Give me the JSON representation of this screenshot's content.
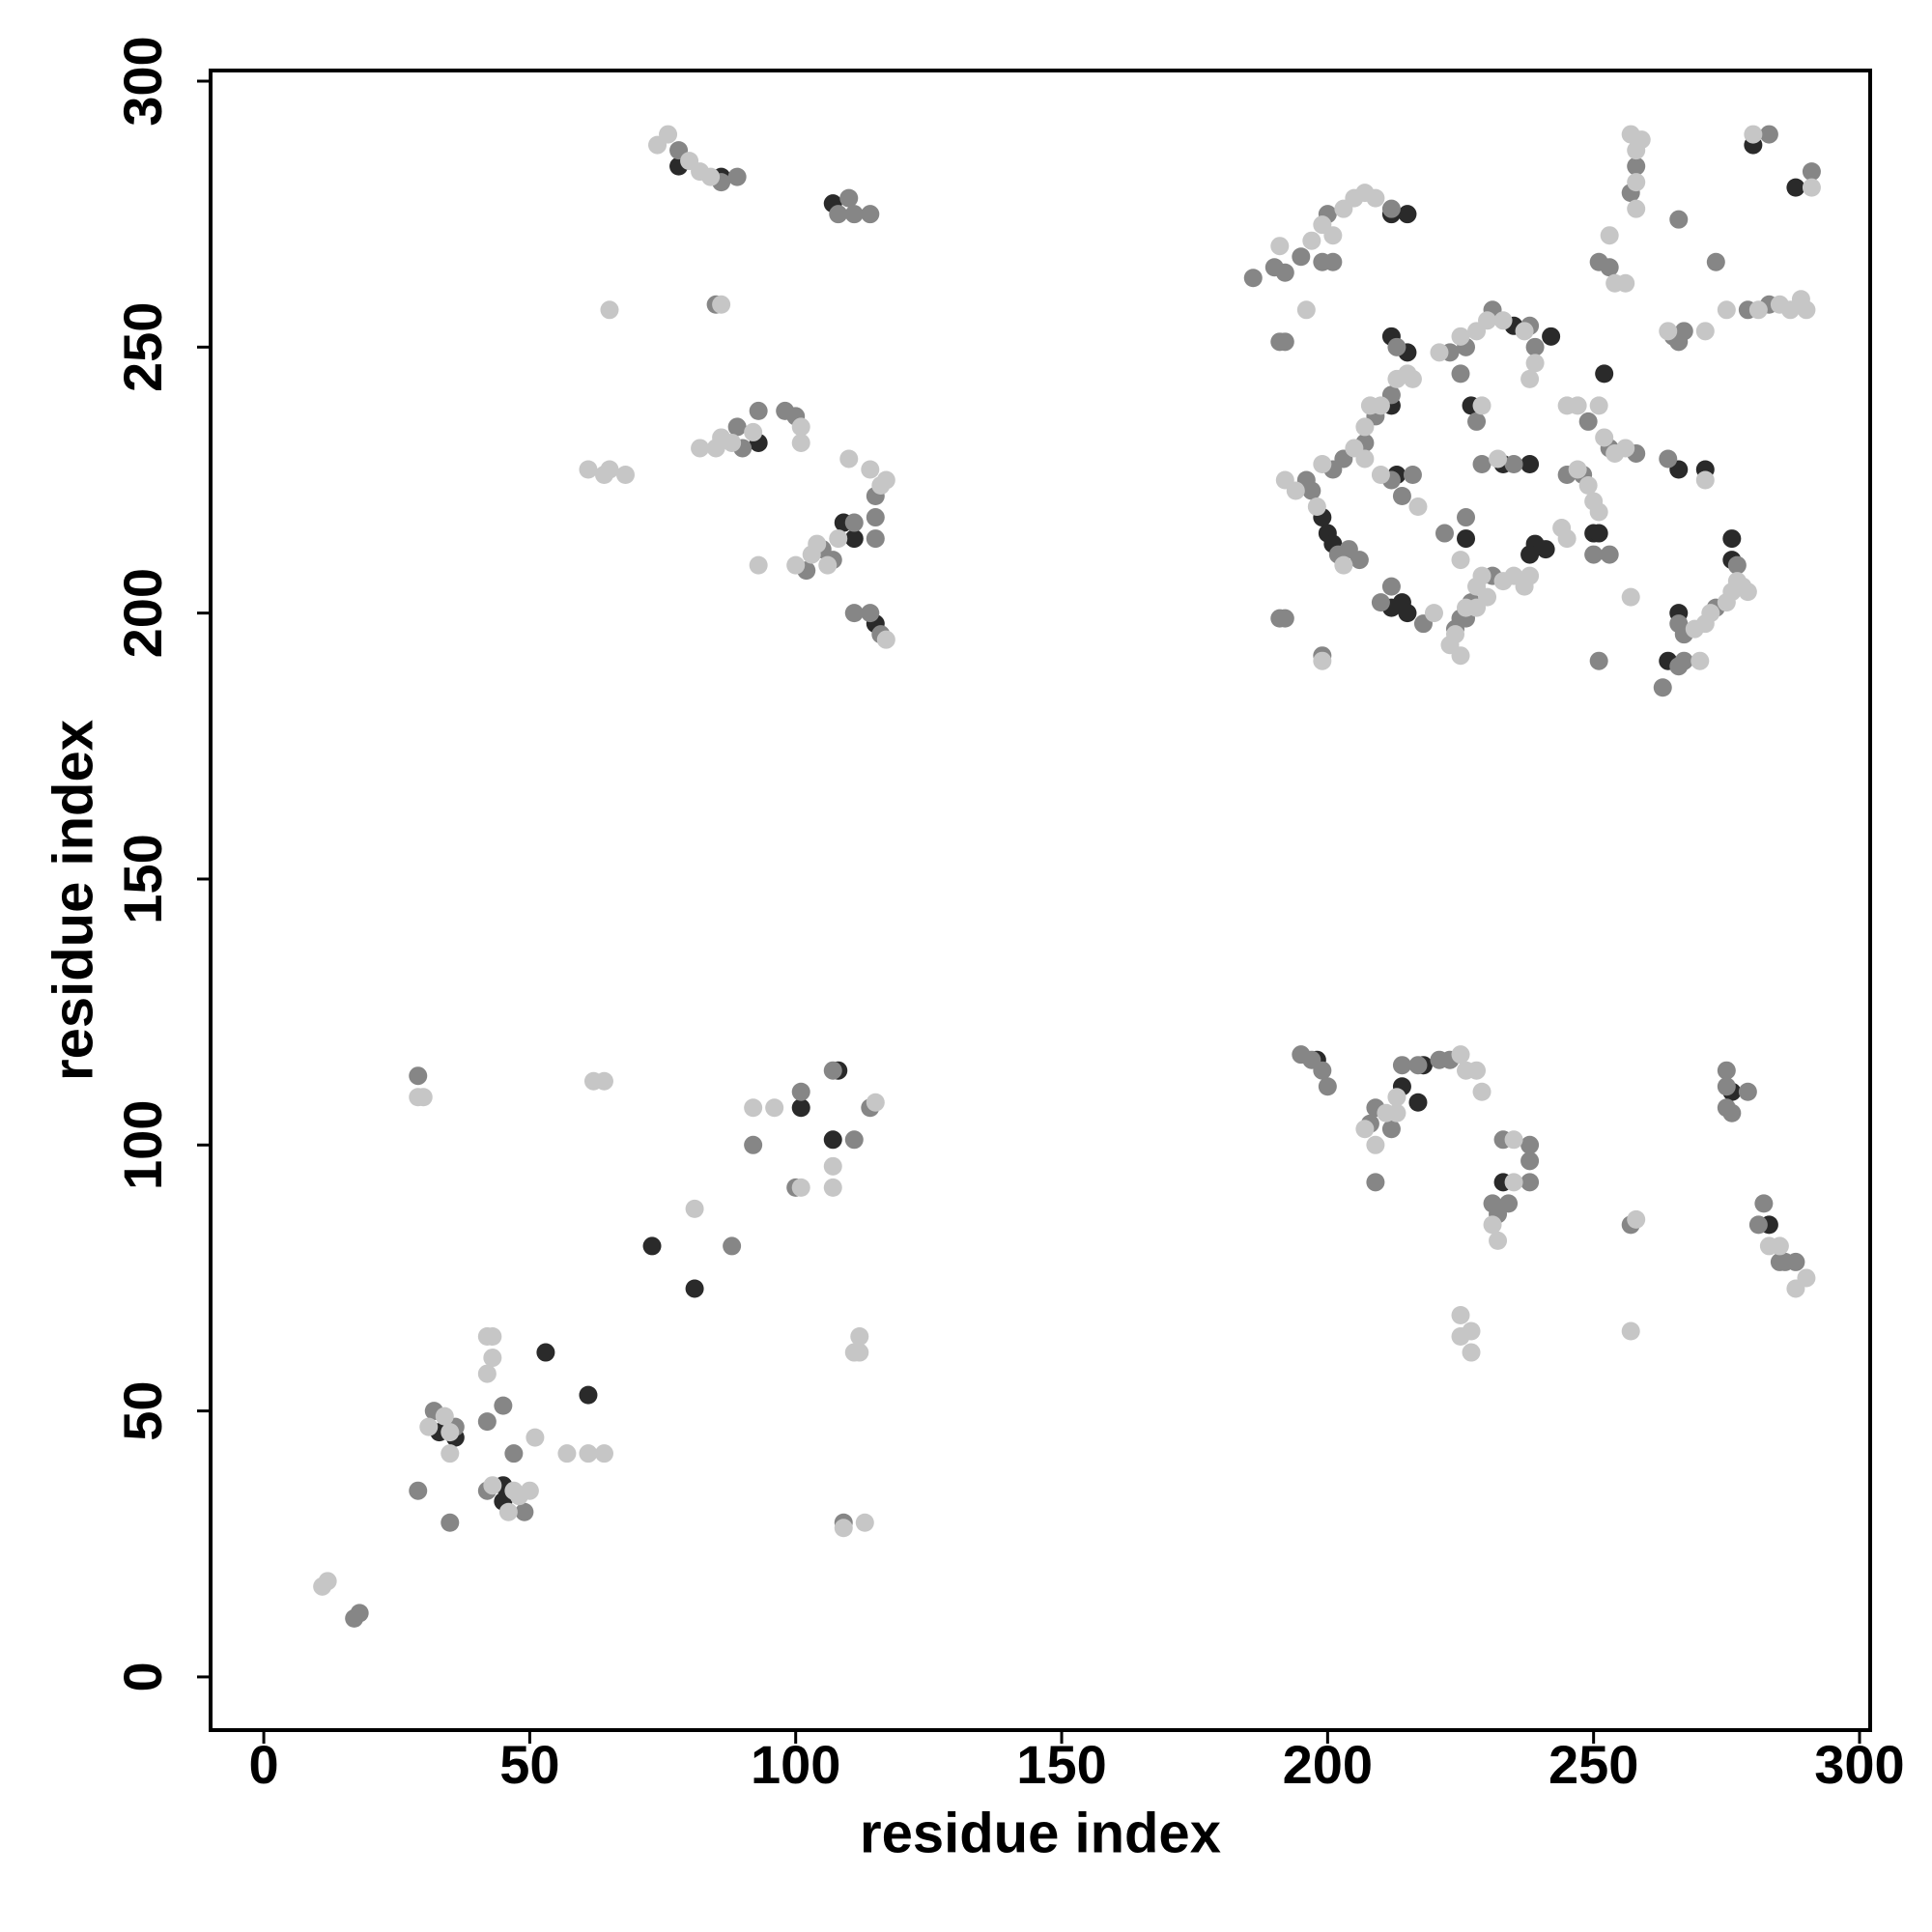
{
  "chart_data": {
    "type": "scatter",
    "x_label": "residue index",
    "y_label": "residue index",
    "xlim": [
      -10,
      302
    ],
    "ylim": [
      -10,
      302
    ],
    "xticks": [
      0,
      50,
      100,
      150,
      200,
      250,
      300
    ],
    "yticks": [
      0,
      50,
      100,
      150,
      200,
      250,
      300
    ],
    "series": [
      {
        "color": "#2a2a2a",
        "x": [
          73,
          81,
          53,
          61,
          101,
          107,
          108,
          109,
          111,
          93,
          33,
          36,
          45,
          45,
          212,
          215,
          199,
          200,
          201,
          213,
          212,
          212,
          215,
          212,
          214,
          215,
          226,
          235,
          227,
          233,
          238,
          239,
          238,
          241,
          242,
          252,
          250,
          251,
          280,
          288,
          266,
          271,
          264,
          266,
          276,
          276,
          78,
          86,
          107,
          115,
          198,
          214,
          217,
          218,
          233,
          276,
          283
        ],
        "values": [
          81,
          73,
          61,
          53,
          107,
          101,
          114,
          217,
          214,
          232,
          46,
          45,
          33,
          36,
          275,
          275,
          218,
          215,
          213,
          226,
          239,
          252,
          249,
          201,
          202,
          200,
          214,
          254,
          239,
          228,
          228,
          213,
          211,
          212,
          252,
          245,
          215,
          215,
          288,
          280,
          227,
          227,
          191,
          200,
          210,
          214,
          284,
          282,
          277,
          198,
          116,
          111,
          108,
          115,
          93,
          110,
          85
        ]
      },
      {
        "color": "#868686",
        "x": [
          17,
          18,
          29,
          32,
          36,
          29,
          35,
          42,
          49,
          47,
          45,
          42,
          88,
          92,
          101,
          100,
          107,
          111,
          114,
          109,
          78,
          86,
          89,
          85,
          108,
          110,
          111,
          114,
          89,
          90,
          93,
          98,
          100,
          102,
          105,
          107,
          111,
          115,
          115,
          115,
          111,
          114,
          116,
          186,
          190,
          192,
          195,
          200,
          212,
          199,
          201,
          191,
          192,
          191,
          192,
          199,
          196,
          197,
          202,
          204,
          206,
          201,
          203,
          207,
          209,
          212,
          214,
          216,
          212,
          213,
          210,
          212,
          218,
          222,
          226,
          225,
          227,
          231,
          224,
          226,
          223,
          226,
          231,
          238,
          239,
          225,
          228,
          229,
          235,
          249,
          253,
          258,
          248,
          245,
          253,
          250,
          251,
          251,
          253,
          258,
          257,
          265,
          266,
          267,
          266,
          273,
          279,
          283,
          283,
          291,
          264,
          263,
          266,
          267,
          266,
          267,
          273,
          277,
          195,
          197,
          199,
          200,
          208,
          209,
          212,
          214,
          217,
          221,
          223,
          209,
          231,
          232,
          233,
          234,
          238,
          238,
          238,
          257,
          275,
          275,
          275,
          276,
          279,
          281,
          282,
          285,
          286,
          288
        ],
        "values": [
          11,
          12,
          113,
          50,
          47,
          35,
          29,
          35,
          31,
          42,
          51,
          48,
          81,
          100,
          110,
          92,
          114,
          101,
          107,
          29,
          287,
          281,
          282,
          258,
          275,
          278,
          275,
          275,
          235,
          231,
          238,
          238,
          237,
          208,
          212,
          210,
          217,
          222,
          218,
          214,
          200,
          200,
          196,
          263,
          265,
          264,
          267,
          275,
          276,
          266,
          266,
          251,
          251,
          199,
          199,
          192,
          225,
          223,
          211,
          212,
          210,
          227,
          229,
          232,
          237,
          225,
          222,
          226,
          241,
          250,
          202,
          205,
          198,
          215,
          218,
          199,
          202,
          207,
          197,
          199,
          249,
          250,
          257,
          254,
          250,
          245,
          236,
          228,
          228,
          236,
          231,
          230,
          226,
          226,
          211,
          211,
          191,
          266,
          265,
          284,
          279,
          252,
          251,
          253,
          274,
          266,
          257,
          258,
          290,
          283,
          229,
          186,
          190,
          191,
          198,
          196,
          201,
          209,
          117,
          116,
          114,
          111,
          104,
          107,
          103,
          115,
          115,
          116,
          116,
          93,
          89,
          87,
          101,
          89,
          100,
          97,
          93,
          85,
          114,
          111,
          107,
          106,
          110,
          85,
          89,
          78,
          78,
          78
        ]
      },
      {
        "color": "#c6c6c6",
        "x": [
          12,
          11,
          29,
          30,
          62,
          64,
          31,
          34,
          35,
          35,
          43,
          46,
          47,
          48,
          50,
          42,
          43,
          43,
          42,
          51,
          57,
          61,
          64,
          81,
          92,
          96,
          101,
          107,
          107,
          115,
          112,
          111,
          112,
          109,
          113,
          74,
          76,
          80,
          82,
          84,
          86,
          65,
          61,
          64,
          65,
          68,
          82,
          85,
          86,
          88,
          92,
          101,
          101,
          93,
          100,
          103,
          104,
          106,
          108,
          110,
          114,
          116,
          117,
          117,
          191,
          197,
          199,
          201,
          203,
          205,
          207,
          209,
          196,
          199,
          192,
          194,
          198,
          203,
          199,
          205,
          207,
          208,
          210,
          207,
          210,
          217,
          213,
          215,
          216,
          220,
          225,
          224,
          226,
          228,
          229,
          233,
          235,
          237,
          238,
          223,
          225,
          228,
          230,
          221,
          225,
          228,
          230,
          233,
          237,
          239,
          238,
          229,
          232,
          244,
          245,
          245,
          247,
          251,
          252,
          254,
          256,
          249,
          250,
          251,
          247,
          257,
          254,
          256,
          253,
          257,
          258,
          259,
          258,
          258,
          264,
          271,
          275,
          281,
          285,
          287,
          290,
          289,
          280,
          291,
          271,
          270,
          269,
          271,
          272,
          275,
          276,
          277,
          278,
          279,
          207,
          209,
          211,
          213,
          213,
          225,
          226,
          228,
          229,
          231,
          232,
          235,
          235,
          225,
          225,
          227,
          227,
          258,
          257,
          283,
          285,
          288,
          290
        ],
        "values": [
          18,
          17,
          109,
          109,
          112,
          112,
          47,
          49,
          42,
          46,
          36,
          31,
          35,
          34,
          35,
          57,
          60,
          64,
          64,
          45,
          42,
          42,
          42,
          88,
          107,
          107,
          92,
          96,
          92,
          108,
          64,
          61,
          61,
          28,
          29,
          288,
          290,
          285,
          283,
          282,
          258,
          257,
          227,
          226,
          227,
          226,
          231,
          231,
          233,
          232,
          234,
          235,
          232,
          209,
          209,
          211,
          213,
          209,
          214,
          229,
          227,
          224,
          225,
          195,
          269,
          270,
          273,
          271,
          276,
          278,
          279,
          278,
          257,
          191,
          225,
          223,
          220,
          209,
          228,
          231,
          235,
          239,
          239,
          229,
          226,
          220,
          244,
          245,
          244,
          200,
          210,
          196,
          201,
          205,
          207,
          206,
          207,
          205,
          207,
          194,
          192,
          201,
          203,
          249,
          252,
          253,
          255,
          255,
          253,
          247,
          244,
          239,
          229,
          216,
          214,
          239,
          239,
          239,
          233,
          230,
          231,
          224,
          221,
          219,
          227,
          203,
          262,
          262,
          271,
          290,
          287,
          289,
          281,
          276,
          253,
          253,
          257,
          257,
          258,
          257,
          257,
          259,
          290,
          280,
          225,
          191,
          197,
          198,
          200,
          202,
          204,
          206,
          205,
          204,
          103,
          100,
          106,
          106,
          109,
          117,
          114,
          114,
          110,
          85,
          82,
          101,
          93,
          68,
          64,
          65,
          61,
          86,
          65,
          81,
          81,
          73,
          75
        ]
      }
    ]
  }
}
